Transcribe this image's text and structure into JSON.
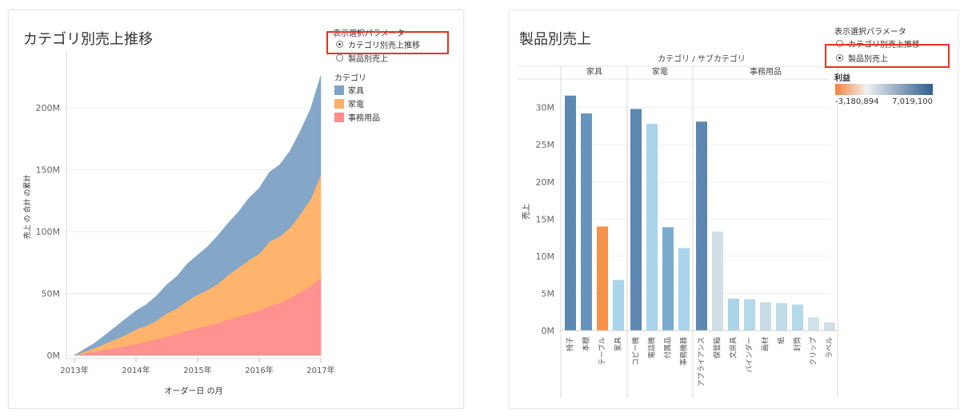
{
  "left": {
    "title": "カテゴリ別売上推移",
    "parameter_title": "表示選択パラメータ",
    "radio_options": [
      {
        "label": "カテゴリ別売上推移",
        "selected": true
      },
      {
        "label": "製品別売上",
        "selected": false
      }
    ],
    "legend_title": "カテゴリ",
    "legend_items": [
      {
        "label": "家具",
        "color": "#7ea3c6"
      },
      {
        "label": "家電",
        "color": "#ffb066"
      },
      {
        "label": "事務用品",
        "color": "#ff8c8c"
      }
    ]
  },
  "right": {
    "title": "製品別売上",
    "parameter_title": "表示選択パラメータ",
    "radio_options": [
      {
        "label": "カテゴリ別売上推移",
        "selected": false
      },
      {
        "label": "製品別売上",
        "selected": true
      }
    ],
    "color_legend_title": "利益",
    "color_legend_min": "-3,180,894",
    "color_legend_max": "7,019,100",
    "color_legend_colors": {
      "negative": "#f5823a",
      "zero": "#f0f0f0",
      "positive": "#2e5f8f"
    }
  },
  "chart_data": [
    {
      "type": "area",
      "stacked": true,
      "x": [
        "2013-01",
        "2013-03",
        "2013-05",
        "2013-07",
        "2013-09",
        "2013-11",
        "2014-01",
        "2014-03",
        "2014-05",
        "2014-07",
        "2014-09",
        "2014-11",
        "2015-01",
        "2015-03",
        "2015-05",
        "2015-07",
        "2015-09",
        "2015-11",
        "2016-01",
        "2016-03",
        "2016-05",
        "2016-07",
        "2016-09",
        "2016-11",
        "2017-01"
      ],
      "series": [
        {
          "name": "事務用品",
          "color": "#ff8c8c",
          "values": [
            0,
            1.5,
            3,
            4.5,
            6,
            7.5,
            9,
            11,
            13,
            15,
            17,
            20,
            22,
            24,
            26,
            29,
            31,
            34,
            36,
            40,
            42,
            46,
            51,
            56,
            63
          ]
        },
        {
          "name": "家電",
          "color": "#ffb066",
          "values": [
            0,
            1.5,
            3,
            5,
            7,
            9,
            12,
            13,
            15,
            19,
            21,
            24,
            27,
            29,
            32,
            36,
            40,
            43,
            46,
            52,
            54,
            57,
            63,
            70,
            83
          ]
        },
        {
          "name": "家具",
          "color": "#7ea3c6",
          "values": [
            0,
            2,
            4,
            7,
            10,
            13,
            15,
            17,
            20,
            23,
            26,
            30,
            32,
            35,
            39,
            42,
            45,
            50,
            53,
            56,
            58,
            62,
            67,
            73,
            80
          ]
        }
      ],
      "x_tick_labels": [
        "2013年",
        "2014年",
        "2015年",
        "2016年",
        "2017年"
      ],
      "xlabel": "オーダー日 の月",
      "ylabel": "売上 の 合計 の累計",
      "y_ticks": [
        "0M",
        "50M",
        "100M",
        "150M",
        "200M"
      ],
      "ylim": [
        0,
        240
      ],
      "grid": true,
      "legend_position": "right"
    },
    {
      "type": "bar",
      "header": "カテゴリ / サブカテゴリ",
      "ylabel": "売上",
      "y_ticks": [
        "0M",
        "5M",
        "10M",
        "15M",
        "20M",
        "25M",
        "30M"
      ],
      "ylim": [
        0,
        32
      ],
      "groups": [
        {
          "name": "家具",
          "bars": [
            {
              "label": "椅子",
              "value": 31.6,
              "color": "#5b87b0"
            },
            {
              "label": "本棚",
              "value": 29.2,
              "color": "#6894bb"
            },
            {
              "label": "テーブル",
              "value": 14.0,
              "color": "#f5914a"
            },
            {
              "label": "家具",
              "value": 6.8,
              "color": "#a9d4ea"
            }
          ]
        },
        {
          "name": "家電",
          "bars": [
            {
              "label": "コピー機",
              "value": 29.8,
              "color": "#5b87b0"
            },
            {
              "label": "電話機",
              "value": 27.8,
              "color": "#a9d4ea"
            },
            {
              "label": "付属品",
              "value": 13.9,
              "color": "#7aabcf"
            },
            {
              "label": "事務機器",
              "value": 11.1,
              "color": "#a9d4ea"
            }
          ]
        },
        {
          "name": "事務用品",
          "bars": [
            {
              "label": "アプライアンス",
              "value": 28.1,
              "color": "#5b87b0"
            },
            {
              "label": "保管箱",
              "value": 13.3,
              "color": "#d2dfe6"
            },
            {
              "label": "文房具",
              "value": 4.3,
              "color": "#a9d4ea"
            },
            {
              "label": "バインダー",
              "value": 4.2,
              "color": "#b5d8ea"
            },
            {
              "label": "画材",
              "value": 3.8,
              "color": "#c8dbe6"
            },
            {
              "label": "紙",
              "value": 3.7,
              "color": "#c0dbe9"
            },
            {
              "label": "封筒",
              "value": 3.5,
              "color": "#b5d8ea"
            },
            {
              "label": "クリップ",
              "value": 1.8,
              "color": "#cfe1ea"
            },
            {
              "label": "ラベル",
              "value": 1.1,
              "color": "#d2dfe6"
            }
          ]
        }
      ]
    }
  ]
}
